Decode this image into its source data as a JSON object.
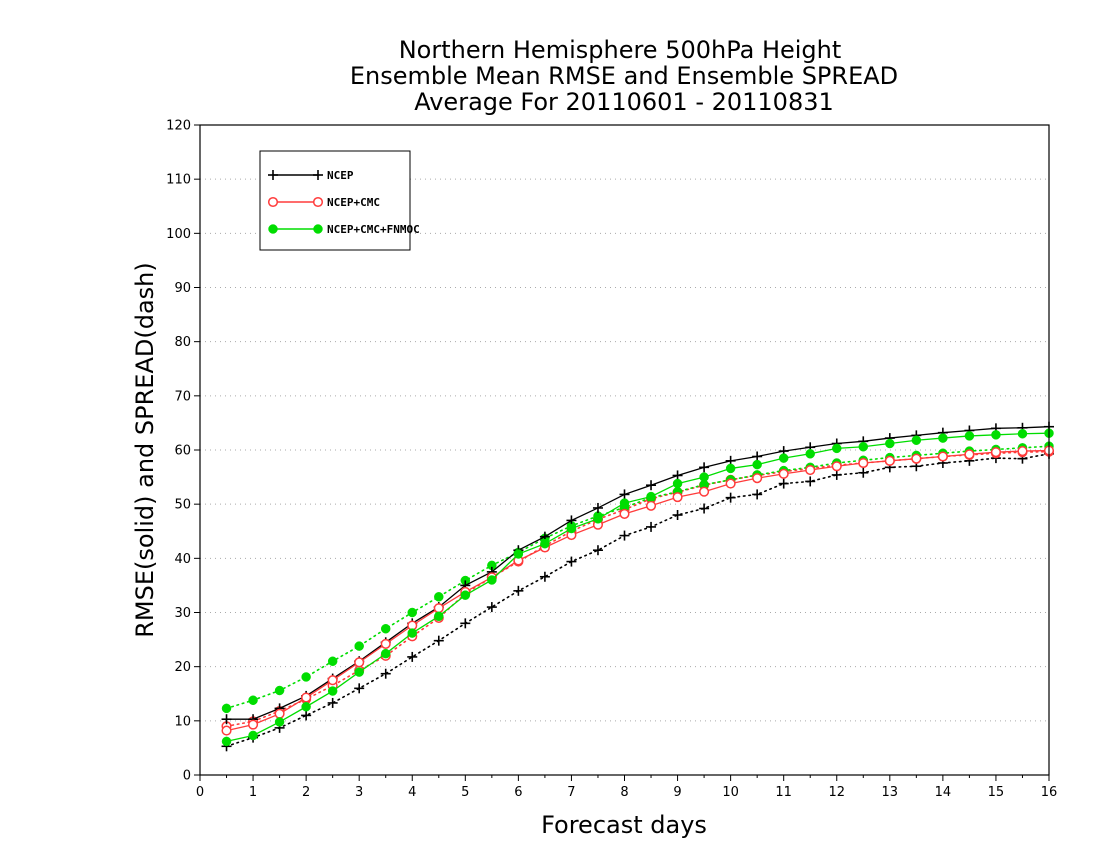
{
  "chart_data": {
    "type": "line",
    "title": [
      "Northern Hemisphere 500hPa Height",
      "Ensemble Mean RMSE and Ensemble SPREAD",
      "Average For 20110601 - 20110831"
    ],
    "xlabel": "Forecast days",
    "ylabel": "RMSE(solid) and SPREAD(dash)",
    "xlim": [
      0,
      16
    ],
    "ylim": [
      0,
      120
    ],
    "xticks": [
      0,
      1,
      2,
      3,
      4,
      5,
      6,
      7,
      8,
      9,
      10,
      11,
      12,
      13,
      14,
      15,
      16
    ],
    "yticks": [
      0,
      10,
      20,
      30,
      40,
      50,
      60,
      70,
      80,
      90,
      100,
      110,
      120
    ],
    "grid": "horizontal dotted",
    "legend_position": "top-left",
    "x": [
      0.5,
      1.0,
      1.5,
      2.0,
      2.5,
      3.0,
      3.5,
      4.0,
      4.5,
      5.0,
      5.5,
      6.0,
      6.5,
      7.0,
      7.5,
      8.0,
      8.5,
      9.0,
      9.5,
      10.0,
      10.5,
      11.0,
      11.5,
      12.0,
      12.5,
      13.0,
      13.5,
      14.0,
      14.5,
      15.0,
      15.5,
      16.0
    ],
    "series": [
      {
        "name": "NCEP",
        "metric": "RMSE",
        "style": "solid",
        "marker": "plus",
        "color": "#000000",
        "values": [
          10.3,
          10.3,
          12.3,
          14.6,
          17.8,
          21.0,
          24.5,
          28.0,
          31.0,
          35.0,
          37.5,
          41.5,
          44.0,
          47.0,
          49.3,
          51.8,
          53.5,
          55.3,
          56.8,
          58.0,
          58.8,
          59.8,
          60.5,
          61.2,
          61.6,
          62.2,
          62.7,
          63.2,
          63.6,
          64.0,
          64.1,
          64.3
        ]
      },
      {
        "name": "NCEP+CMC",
        "metric": "RMSE",
        "style": "solid",
        "marker": "open-circle",
        "color": "#ff3b3b",
        "values": [
          8.2,
          9.3,
          11.3,
          14.3,
          17.5,
          20.8,
          24.2,
          27.6,
          30.8,
          33.8,
          36.5,
          39.6,
          42.0,
          44.3,
          46.2,
          48.2,
          49.7,
          51.3,
          52.3,
          53.8,
          54.8,
          55.6,
          56.3,
          57.0,
          57.6,
          58.0,
          58.4,
          58.8,
          59.2,
          59.6,
          59.8,
          59.9
        ]
      },
      {
        "name": "NCEP+CMC+FNMOC",
        "metric": "RMSE",
        "style": "solid",
        "marker": "filled-circle",
        "color": "#00dd00",
        "values": [
          6.2,
          7.3,
          9.8,
          12.6,
          15.5,
          19.0,
          22.4,
          26.2,
          29.3,
          33.2,
          36.0,
          40.8,
          42.7,
          45.5,
          47.3,
          50.2,
          51.4,
          53.8,
          55.0,
          56.6,
          57.3,
          58.5,
          59.3,
          60.3,
          60.6,
          61.2,
          61.8,
          62.2,
          62.6,
          62.8,
          63.0,
          63.1
        ]
      },
      {
        "name": "NCEP",
        "metric": "SPREAD",
        "style": "dotted",
        "marker": "plus",
        "color": "#000000",
        "values": [
          5.3,
          6.9,
          8.7,
          11.0,
          13.3,
          16.0,
          18.7,
          21.8,
          24.8,
          28.0,
          31.0,
          34.0,
          36.6,
          39.4,
          41.5,
          44.2,
          45.8,
          48.0,
          49.2,
          51.2,
          51.8,
          53.8,
          54.2,
          55.4,
          55.8,
          56.8,
          57.0,
          57.6,
          58.0,
          58.5,
          58.4,
          59.3
        ]
      },
      {
        "name": "NCEP+CMC",
        "metric": "SPREAD",
        "style": "dotted",
        "marker": "open-circle",
        "color": "#ff3b3b",
        "values": [
          9.0,
          9.9,
          11.8,
          14.0,
          16.5,
          19.3,
          22.0,
          25.6,
          29.0,
          33.5,
          36.5,
          39.4,
          42.3,
          45.0,
          47.2,
          49.0,
          51.0,
          52.2,
          53.5,
          54.5,
          55.3,
          56.0,
          56.6,
          57.2,
          57.6,
          58.0,
          58.4,
          58.8,
          59.1,
          59.4,
          59.6,
          59.7
        ]
      },
      {
        "name": "NCEP+CMC+FNMOC",
        "metric": "SPREAD",
        "style": "dotted",
        "marker": "filled-circle",
        "color": "#00dd00",
        "values": [
          12.3,
          13.8,
          15.6,
          18.1,
          21.0,
          23.8,
          27.0,
          30.0,
          32.9,
          35.9,
          38.7,
          41.1,
          43.7,
          46.0,
          47.8,
          49.4,
          51.2,
          52.3,
          53.6,
          54.5,
          55.4,
          56.2,
          56.8,
          57.6,
          58.1,
          58.6,
          59.0,
          59.4,
          59.8,
          60.1,
          60.4,
          60.7
        ]
      }
    ],
    "legend": [
      {
        "label": "NCEP",
        "marker": "plus",
        "color": "#000000"
      },
      {
        "label": "NCEP+CMC",
        "marker": "open-circle",
        "color": "#ff3b3b"
      },
      {
        "label": "NCEP+CMC+FNMOC",
        "marker": "filled-circle",
        "color": "#00dd00"
      }
    ]
  }
}
